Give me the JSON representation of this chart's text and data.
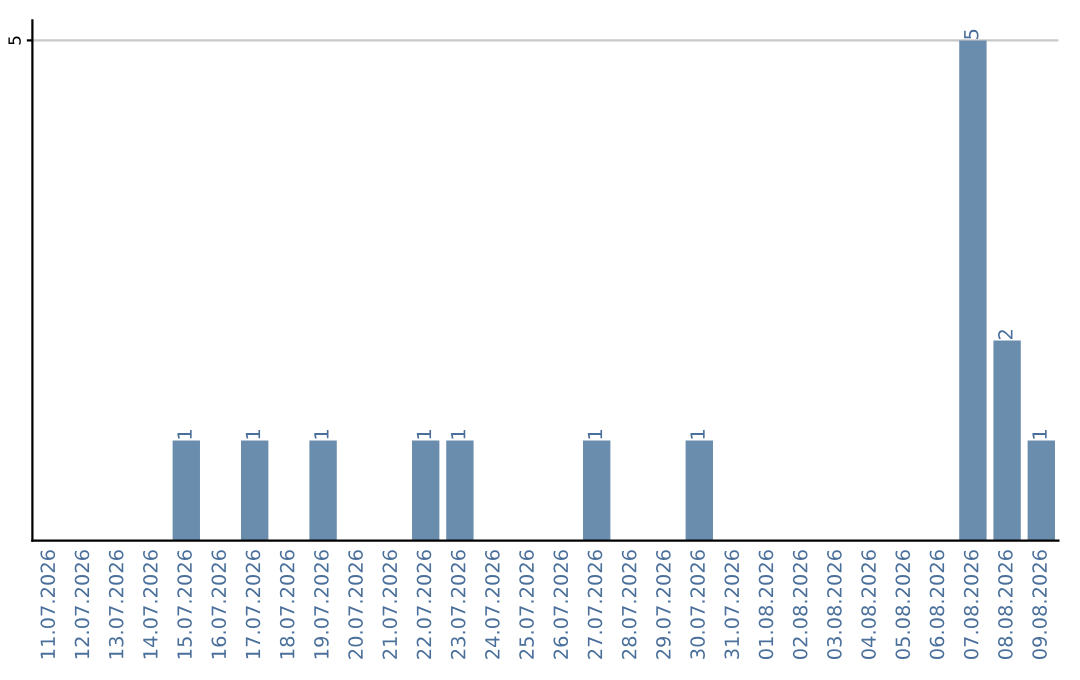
{
  "chart_data": {
    "type": "bar",
    "categories": [
      "11.07.2026",
      "12.07.2026",
      "13.07.2026",
      "14.07.2026",
      "15.07.2026",
      "16.07.2026",
      "17.07.2026",
      "18.07.2026",
      "19.07.2026",
      "20.07.2026",
      "21.07.2026",
      "22.07.2026",
      "23.07.2026",
      "24.07.2026",
      "25.07.2026",
      "26.07.2026",
      "27.07.2026",
      "28.07.2026",
      "29.07.2026",
      "30.07.2026",
      "31.07.2026",
      "01.08.2026",
      "02.08.2026",
      "03.08.2026",
      "04.08.2026",
      "05.08.2026",
      "06.08.2026",
      "07.08.2026",
      "08.08.2026",
      "09.08.2026"
    ],
    "values": [
      0,
      0,
      0,
      0,
      1,
      0,
      1,
      0,
      1,
      0,
      0,
      1,
      1,
      0,
      0,
      0,
      1,
      0,
      0,
      1,
      0,
      0,
      0,
      0,
      0,
      0,
      0,
      5,
      2,
      1
    ],
    "value_labels": [
      null,
      null,
      null,
      null,
      "1",
      null,
      "1",
      null,
      "1",
      null,
      null,
      "1",
      "1",
      null,
      null,
      null,
      "1",
      null,
      null,
      "1",
      null,
      null,
      null,
      null,
      null,
      null,
      null,
      "5",
      "2",
      "1"
    ],
    "color": "#6a8cad",
    "ylim": [
      0,
      5.2
    ],
    "yticks": [
      5
    ],
    "grid": "y"
  }
}
